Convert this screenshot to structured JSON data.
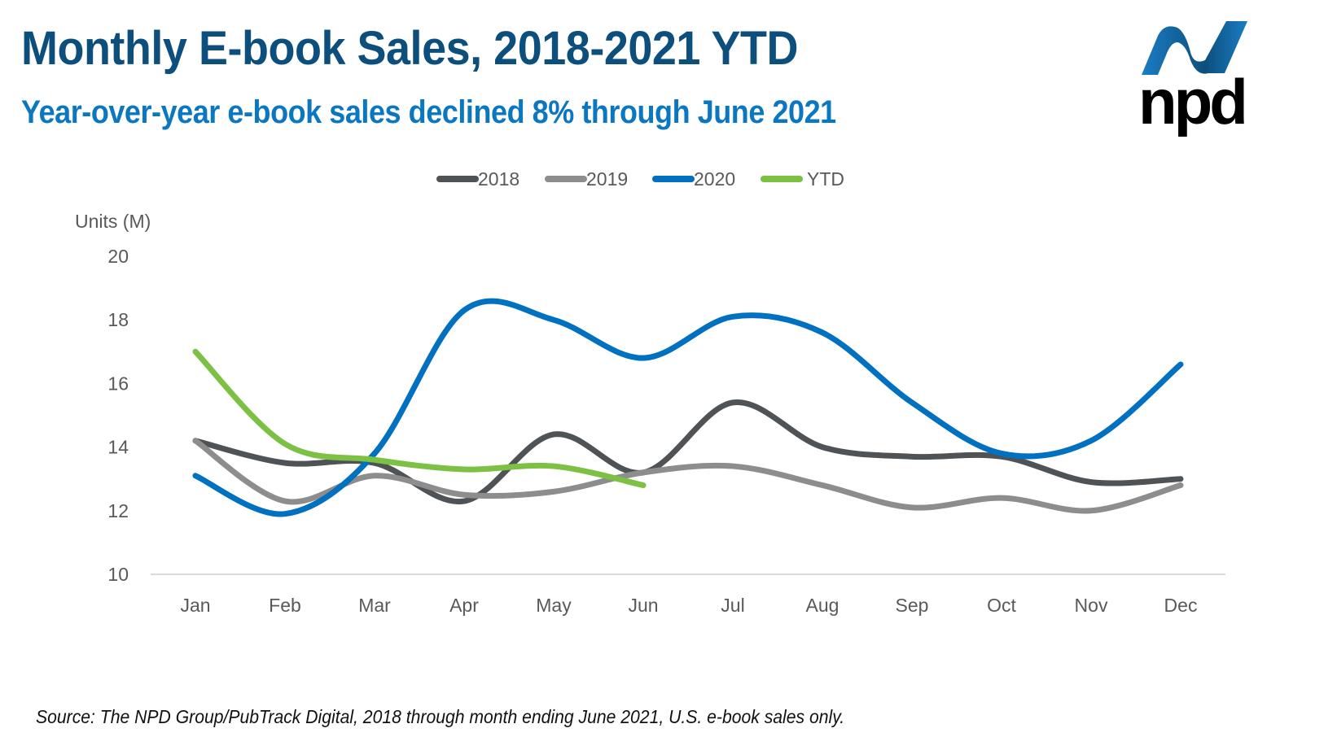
{
  "header": {
    "title": "Monthly E-book Sales, 2018-2021 YTD",
    "subtitle": "Year-over-year e-book sales declined 8% through June 2021",
    "logo_text": "npd"
  },
  "footer": {
    "source": "Source: The NPD Group/PubTrack Digital, 2018 through month ending June 2021, U.S. e-book sales only."
  },
  "chart_data": {
    "type": "line",
    "title": "Monthly E-book Sales, 2018-2021 YTD",
    "subtitle": "Year-over-year e-book sales declined 8% through June 2021",
    "xlabel": "",
    "ylabel": "Units (M)",
    "ylim": [
      10,
      20
    ],
    "yticks": [
      10,
      12,
      14,
      16,
      18,
      20
    ],
    "grid": false,
    "smooth": true,
    "legend_position": "top-center",
    "categories": [
      "Jan",
      "Feb",
      "Mar",
      "Apr",
      "May",
      "Jun",
      "Jul",
      "Aug",
      "Sep",
      "Oct",
      "Nov",
      "Dec"
    ],
    "series": [
      {
        "name": "2018",
        "color": "#505356",
        "values": [
          14.2,
          13.5,
          13.5,
          12.3,
          14.4,
          13.2,
          15.4,
          14.0,
          13.7,
          13.7,
          12.9,
          13.0
        ]
      },
      {
        "name": "2019",
        "color": "#8c8d8c",
        "values": [
          14.2,
          12.3,
          13.1,
          12.5,
          12.6,
          13.2,
          13.4,
          12.8,
          12.1,
          12.4,
          12.0,
          12.8
        ]
      },
      {
        "name": "2020",
        "color": "#0070c0",
        "values": [
          13.1,
          11.9,
          13.8,
          18.3,
          18.0,
          16.8,
          18.1,
          17.6,
          15.4,
          13.8,
          14.2,
          16.6
        ]
      },
      {
        "name": "YTD",
        "color": "#7cc143",
        "values": [
          17.0,
          14.1,
          13.6,
          13.3,
          13.4,
          12.8
        ]
      }
    ]
  }
}
